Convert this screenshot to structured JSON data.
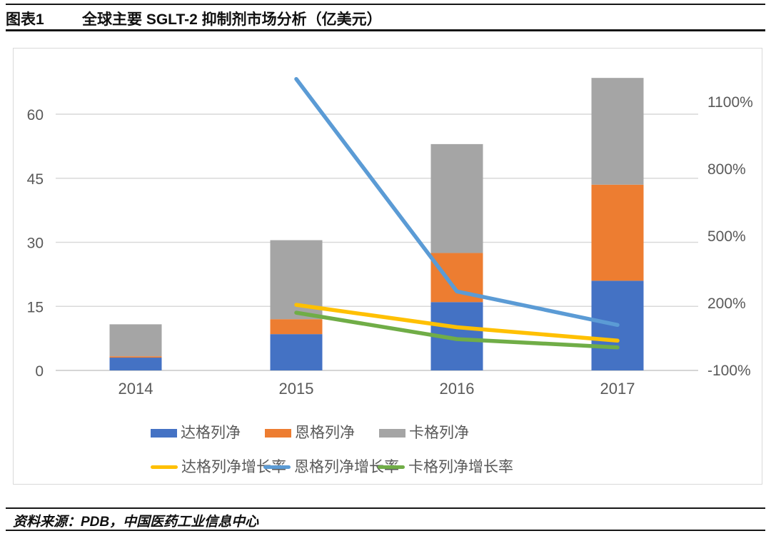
{
  "header": {
    "figure_label": "图表1",
    "title": "全球主要 SGLT-2 抑制剂市场分析（亿美元）"
  },
  "source": {
    "text": "资料来源：PDB，中国医药工业信息中心"
  },
  "chart_data": {
    "type": "bar",
    "subtype": "stacked-bar-with-lines-combo",
    "title": "全球主要 SGLT-2 抑制剂市场分析（亿美元）",
    "categories": [
      "2014",
      "2015",
      "2016",
      "2017"
    ],
    "bar_series": [
      {
        "name": "达格列净",
        "color": "#4472C4",
        "values": [
          3,
          8.5,
          16,
          21
        ]
      },
      {
        "name": "恩格列净",
        "color": "#ED7D31",
        "values": [
          0.3,
          3.5,
          11.5,
          22.5
        ]
      },
      {
        "name": "卡格列净",
        "color": "#A5A5A5",
        "values": [
          7.5,
          18.5,
          25.5,
          25
        ]
      }
    ],
    "line_series": [
      {
        "name": "达格列净增长率",
        "color": "#FFC000",
        "values_pct": [
          null,
          190,
          90,
          30
        ]
      },
      {
        "name": "恩格列净增长率",
        "color": "#5B9BD5",
        "values_pct": [
          null,
          1200,
          250,
          100
        ]
      },
      {
        "name": "卡格列净增长率",
        "color": "#70AD47",
        "values_pct": [
          null,
          155,
          37,
          0
        ]
      }
    ],
    "left_axis": {
      "ticks": [
        0,
        15,
        30,
        45,
        60
      ],
      "range": [
        0,
        71.5
      ]
    },
    "right_axis": {
      "ticks_pct": [
        -100,
        200,
        500,
        800,
        1100
      ],
      "unit": "%",
      "range_pct": [
        -100,
        1250
      ]
    },
    "grid": true,
    "legend_position": "bottom",
    "axis_text_color": "#595959",
    "gridline_color": "#d9d9d9"
  }
}
